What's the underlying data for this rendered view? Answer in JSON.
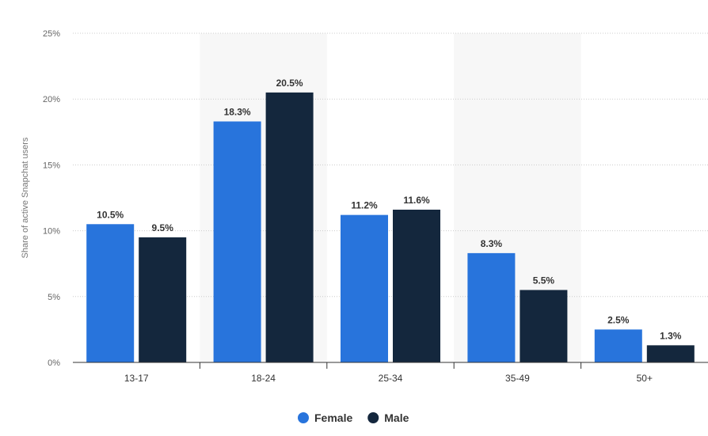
{
  "chart_data": {
    "type": "bar",
    "title": "",
    "xlabel": "",
    "ylabel": "Share of active Snapchat users",
    "categories": [
      "13-17",
      "18-24",
      "25-34",
      "35-49",
      "50+"
    ],
    "series": [
      {
        "name": "Female",
        "values": [
          10.5,
          18.3,
          11.2,
          8.3,
          2.5
        ],
        "labels": [
          "10.5%",
          "18.3%",
          "11.2%",
          "8.3%",
          "2.5%"
        ],
        "color": "#2874dc"
      },
      {
        "name": "Male",
        "values": [
          9.5,
          20.5,
          11.6,
          5.5,
          1.3
        ],
        "labels": [
          "9.5%",
          "20.5%",
          "11.6%",
          "5.5%",
          "1.3%"
        ],
        "color": "#14273d"
      }
    ],
    "ylim": [
      0,
      25
    ],
    "yticks": [
      0,
      5,
      10,
      15,
      20,
      25
    ],
    "ytick_labels": [
      "0%",
      "5%",
      "10%",
      "15%",
      "20%",
      "25%"
    ],
    "grid": true,
    "legend_position": "bottom-center",
    "band_color": "#f7f7f7"
  }
}
